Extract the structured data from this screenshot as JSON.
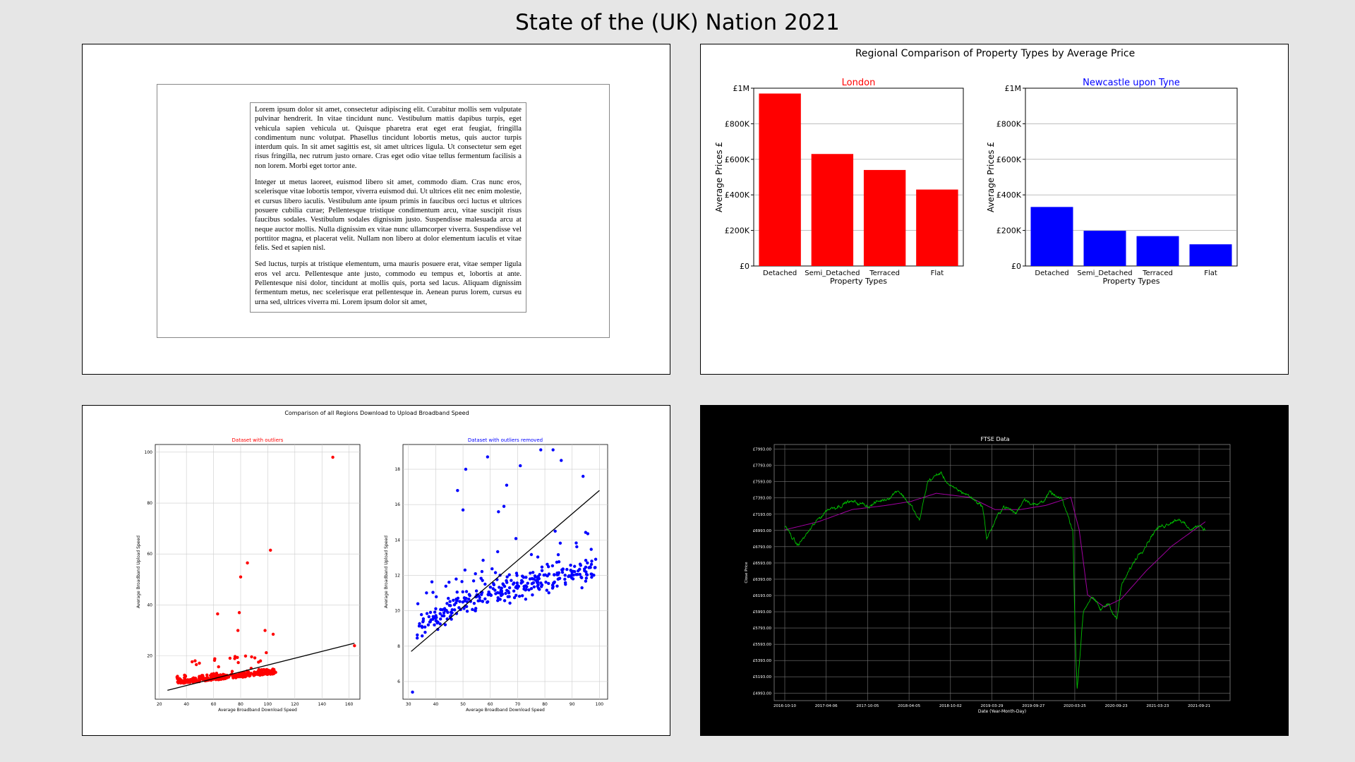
{
  "page": {
    "title": "State of the (UK) Nation 2021"
  },
  "document": {
    "paragraphs": [
      "Lorem ipsum dolor sit amet, consectetur adipiscing elit. Curabitur mollis sem vulputate pulvinar hendrerit. In vitae tincidunt nunc. Vestibulum mattis dapibus turpis, eget vehicula sapien vehicula ut. Quisque pharetra erat eget erat feugiat, fringilla condimentum nunc volutpat. Phasellus tincidunt lobortis metus, quis auctor turpis interdum quis. In sit amet sagittis est, sit amet ultrices ligula. Ut consectetur sem eget risus fringilla, nec rutrum justo ornare. Cras eget odio vitae tellus fermentum facilisis a non lorem. Morbi eget tortor ante.",
      "Integer ut metus laoreet, euismod libero sit amet, commodo diam. Cras nunc eros, scelerisque vitae lobortis tempor, viverra euismod dui. Ut ultrices elit nec enim molestie, et cursus libero iaculis. Vestibulum ante ipsum primis in faucibus orci luctus et ultrices posuere cubilia curae; Pellentesque tristique condimentum arcu, vitae suscipit risus faucibus sodales. Vestibulum sodales dignissim justo. Suspendisse malesuada arcu at neque auctor mollis. Nulla dignissim ex vitae nunc ullamcorper viverra. Suspendisse vel porttitor magna, et placerat velit. Nullam non libero at dolor elementum iaculis et vitae felis. Sed et sapien nisl.",
      "Sed luctus, turpis at tristique elementum, urna mauris posuere erat, vitae semper ligula eros vel arcu. Pellentesque ante justo, commodo eu tempus et, lobortis at ante. Pellentesque nisi dolor, tincidunt at mollis quis, porta sed lacus. Aliquam dignissim fermentum metus, nec scelerisque erat pellentesque in. Aenean purus lorem, cursus eu urna sed, ultrices viverra mi. Lorem ipsum dolor sit amet,"
    ]
  },
  "chart_data": [
    {
      "type": "bar",
      "title": "Regional Comparison of Property Types by Average Price",
      "subtitle": "London",
      "color": "#ff0000",
      "categories": [
        "Detached",
        "Semi_Detached",
        "Terraced",
        "Flat"
      ],
      "values": [
        970000,
        630000,
        540000,
        430000
      ],
      "xlabel": "Property Types",
      "ylabel": "Average Prices £",
      "ylim": [
        0,
        1000000
      ],
      "yticks": [
        0,
        200000,
        400000,
        600000,
        800000,
        1000000
      ],
      "yticklabels": [
        "£0",
        "£200K",
        "£400K",
        "£600K",
        "£800K",
        "£1M"
      ],
      "grid": "y"
    },
    {
      "type": "bar",
      "title": "",
      "subtitle": "Newcastle upon Tyne",
      "color": "#0000ff",
      "categories": [
        "Detached",
        "Semi_Detached",
        "Terraced",
        "Flat"
      ],
      "values": [
        332000,
        198000,
        168000,
        122000
      ],
      "xlabel": "Property Types",
      "ylabel": "Average Prices £",
      "ylim": [
        0,
        1000000
      ],
      "yticks": [
        0,
        200000,
        400000,
        600000,
        800000,
        1000000
      ],
      "yticklabels": [
        "£0",
        "£200K",
        "£400K",
        "£600K",
        "£800K",
        "£1M"
      ],
      "grid": "y"
    },
    {
      "type": "scatter",
      "title": "Comparison of all Regions Download to Upload Broadband Speed",
      "subtitle": "Dataset with outliers",
      "color": "#ff0000",
      "xlabel": "Average Broadband Download Speed",
      "ylabel": "Average Broadband Upload Speed",
      "xlim": [
        17,
        168
      ],
      "ylim": [
        3,
        103
      ],
      "xticks": [
        20,
        40,
        60,
        80,
        100,
        120,
        140,
        160
      ],
      "yticks": [
        20,
        40,
        60,
        80,
        100
      ],
      "grid": "both",
      "fit_line": {
        "x": [
          26,
          164
        ],
        "y": [
          6.5,
          25
        ]
      },
      "outliers": [
        [
          148,
          98
        ],
        [
          102,
          61.5
        ],
        [
          85,
          56.5
        ],
        [
          80,
          51
        ],
        [
          79,
          37
        ],
        [
          63,
          36.5
        ],
        [
          78,
          30
        ],
        [
          98,
          30
        ],
        [
          104,
          28.5
        ],
        [
          164,
          24
        ]
      ],
      "cloud": {
        "x": [
          33,
          106
        ],
        "y": [
          7,
          23
        ]
      }
    },
    {
      "type": "scatter",
      "title": "",
      "subtitle": "Dataset with outliers removed",
      "color": "#0000ff",
      "xlabel": "Average Broadband Download Speed",
      "ylabel": "Average Broadband Upload Speed",
      "xlim": [
        28,
        103
      ],
      "ylim": [
        5,
        19.4
      ],
      "xticks": [
        30,
        40,
        50,
        60,
        70,
        80,
        90,
        100
      ],
      "yticks": [
        6,
        8,
        10,
        12,
        14,
        16,
        18
      ],
      "grid": "both",
      "fit_line": {
        "x": [
          31,
          100
        ],
        "y": [
          7.7,
          16.8
        ]
      },
      "outliers": [
        [
          31.5,
          5.4
        ],
        [
          51,
          18
        ],
        [
          59,
          18.7
        ],
        [
          71,
          18.2
        ],
        [
          78.5,
          19.1
        ],
        [
          83,
          19.1
        ],
        [
          86,
          18.5
        ],
        [
          94,
          17.6
        ],
        [
          48,
          16.8
        ],
        [
          66,
          17.1
        ],
        [
          63,
          15.6
        ],
        [
          65,
          15.9
        ],
        [
          50,
          15.7
        ]
      ],
      "cloud": {
        "x": [
          33,
          99
        ],
        "y": [
          7.5,
          14.5
        ]
      }
    },
    {
      "type": "line",
      "title": "FTSE Data",
      "xlabel": "Date (Year-Month-Day)",
      "ylabel": "Close Price",
      "series": [],
      "xticklabels": [
        "2016-10-10",
        "2017-04-06",
        "2017-10-05",
        "2018-04-05",
        "2018-10-02",
        "2019-03-29",
        "2019-09-27",
        "2020-03-25",
        "2020-09-23",
        "2021-03-23",
        "2021-09-21"
      ],
      "yticks": [
        4993,
        5193,
        5393,
        5593,
        5793,
        5993,
        6193,
        6393,
        6593,
        6793,
        6993,
        7193,
        7393,
        7593,
        7793,
        7993
      ],
      "yticklabels": [
        "£4993.00",
        "£5193.00",
        "£5393.00",
        "£5593.00",
        "£5793.00",
        "£5993.00",
        "£6193.00",
        "£6393.00",
        "£6593.00",
        "£6793.00",
        "£6993.00",
        "£7193.00",
        "£7393.00",
        "£7593.00",
        "£7793.00",
        "£7993.00"
      ],
      "ylim": [
        4900,
        8050
      ],
      "close_keypoints": [
        [
          0,
          7050
        ],
        [
          0.03,
          6800
        ],
        [
          0.06,
          7000
        ],
        [
          0.1,
          7250
        ],
        [
          0.15,
          7350
        ],
        [
          0.2,
          7300
        ],
        [
          0.24,
          7380
        ],
        [
          0.27,
          7500
        ],
        [
          0.3,
          7300
        ],
        [
          0.32,
          7100
        ],
        [
          0.34,
          7600
        ],
        [
          0.37,
          7700
        ],
        [
          0.4,
          7500
        ],
        [
          0.43,
          7450
        ],
        [
          0.47,
          7300
        ],
        [
          0.48,
          6900
        ],
        [
          0.5,
          7100
        ],
        [
          0.52,
          7300
        ],
        [
          0.55,
          7200
        ],
        [
          0.57,
          7400
        ],
        [
          0.6,
          7300
        ],
        [
          0.63,
          7450
        ],
        [
          0.66,
          7350
        ],
        [
          0.685,
          7000
        ],
        [
          0.69,
          5800
        ],
        [
          0.695,
          5050
        ],
        [
          0.71,
          6000
        ],
        [
          0.73,
          6200
        ],
        [
          0.75,
          6000
        ],
        [
          0.77,
          6100
        ],
        [
          0.79,
          5900
        ],
        [
          0.8,
          6300
        ],
        [
          0.82,
          6500
        ],
        [
          0.84,
          6700
        ],
        [
          0.86,
          6850
        ],
        [
          0.88,
          7000
        ],
        [
          0.9,
          7050
        ],
        [
          0.92,
          7120
        ],
        [
          0.94,
          7150
        ],
        [
          0.96,
          7000
        ],
        [
          0.98,
          7050
        ],
        [
          1.0,
          7000
        ]
      ],
      "ma_keypoints": [
        [
          0,
          7000
        ],
        [
          0.08,
          7100
        ],
        [
          0.16,
          7250
        ],
        [
          0.24,
          7300
        ],
        [
          0.3,
          7350
        ],
        [
          0.36,
          7450
        ],
        [
          0.44,
          7400
        ],
        [
          0.5,
          7250
        ],
        [
          0.56,
          7250
        ],
        [
          0.62,
          7300
        ],
        [
          0.68,
          7400
        ],
        [
          0.7,
          7000
        ],
        [
          0.72,
          6200
        ],
        [
          0.76,
          6050
        ],
        [
          0.8,
          6150
        ],
        [
          0.86,
          6500
        ],
        [
          0.92,
          6800
        ],
        [
          1.0,
          7100
        ]
      ],
      "colors": {
        "close": "#00c000",
        "moving_average": "#a000a0"
      }
    }
  ]
}
